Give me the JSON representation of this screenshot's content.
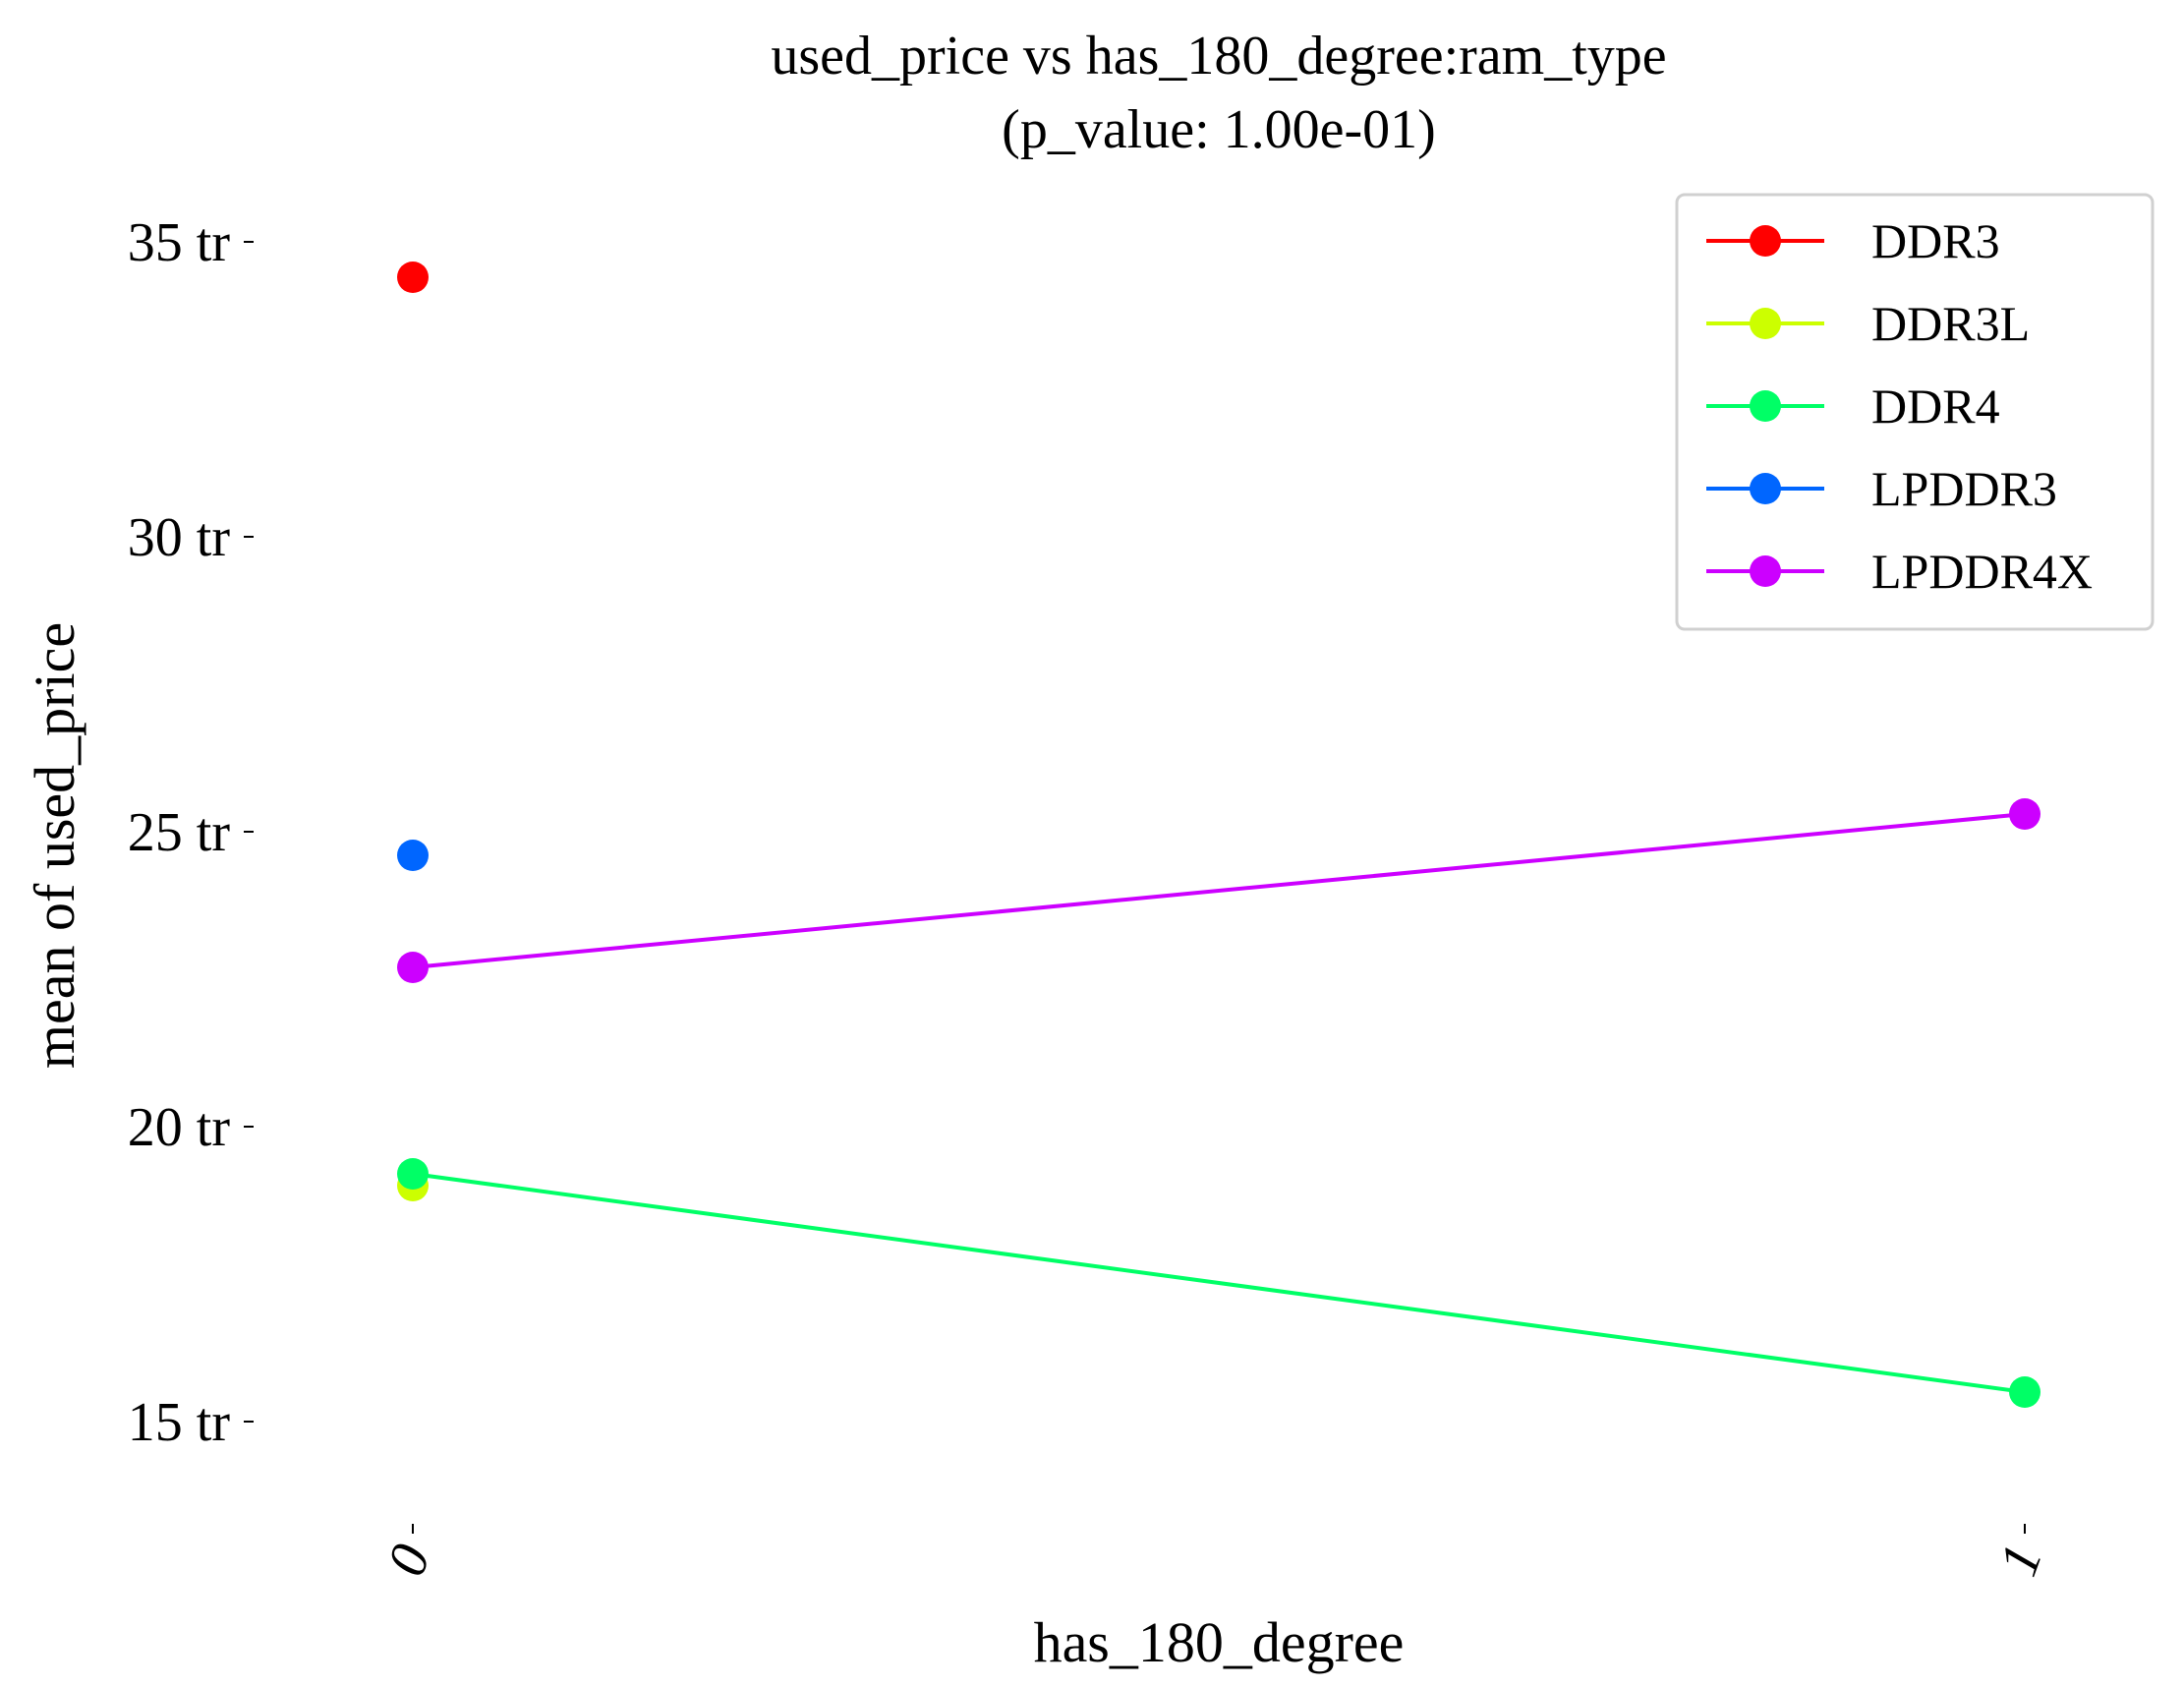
{
  "chart_data": {
    "type": "line",
    "title": "used_price vs has_180_degree:ram_type",
    "subtitle": "(p_value: 1.00e-01)",
    "xlabel": "has_180_degree",
    "ylabel": "mean of used_price",
    "categories": [
      "0",
      "1"
    ],
    "y_ticks": [
      {
        "value": 15000000,
        "label": "15 tr"
      },
      {
        "value": 20000000,
        "label": "20 tr"
      },
      {
        "value": 25000000,
        "label": "25 tr"
      },
      {
        "value": 30000000,
        "label": "30 tr"
      },
      {
        "value": 35000000,
        "label": "35 tr"
      }
    ],
    "ylim": [
      13600000,
      35600000
    ],
    "grid": false,
    "legend_position": "top-right",
    "series": [
      {
        "name": "DDR3",
        "color": "#ff0000",
        "values": [
          34400000,
          null
        ]
      },
      {
        "name": "DDR3L",
        "color": "#ccff00",
        "values": [
          19000000,
          null
        ]
      },
      {
        "name": "DDR4",
        "color": "#00ff66",
        "values": [
          19200000,
          15500000
        ]
      },
      {
        "name": "LPDDR3",
        "color": "#0066ff",
        "values": [
          24600000,
          null
        ]
      },
      {
        "name": "LPDDR4X",
        "color": "#cc00ff",
        "values": [
          22700000,
          25300000
        ]
      }
    ]
  }
}
